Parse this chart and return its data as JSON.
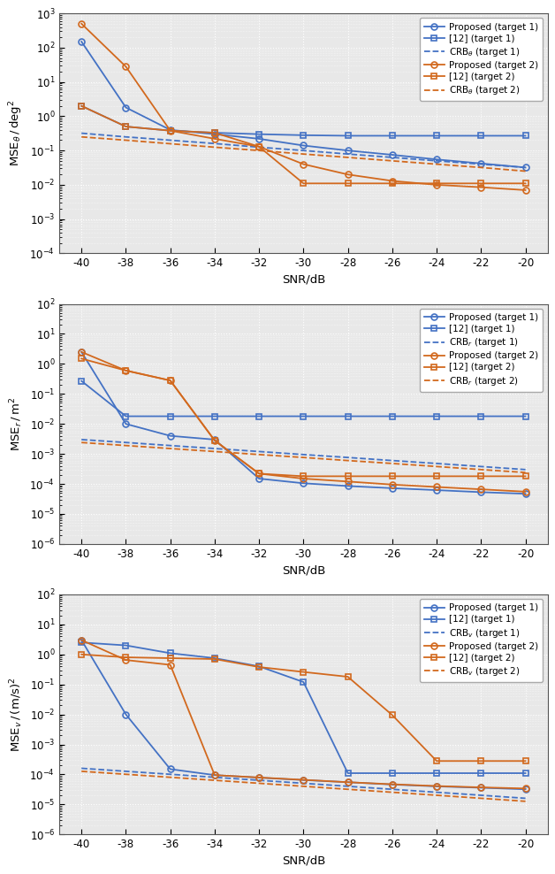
{
  "snr": [
    -40,
    -38,
    -36,
    -34,
    -32,
    -30,
    -28,
    -26,
    -24,
    -22,
    -20
  ],
  "blue_color": "#4472c4",
  "orange_color": "#d2691e",
  "plot1": {
    "ylim_log": [
      -4,
      3
    ],
    "ylabel": "MSE$_{\\theta}$ / deg$^2$",
    "crb_subscript": "\\theta",
    "proposed_t1": [
      150.0,
      1.8,
      0.4,
      0.3,
      0.22,
      0.14,
      0.1,
      0.075,
      0.055,
      0.042,
      0.032
    ],
    "ref12_t1": [
      2.0,
      0.5,
      0.38,
      0.33,
      0.3,
      0.28,
      0.27,
      0.27,
      0.27,
      0.27,
      0.27
    ],
    "crb_t1": [
      0.32,
      0.25,
      0.2,
      0.16,
      0.125,
      0.1,
      0.079,
      0.063,
      0.05,
      0.04,
      0.032
    ],
    "proposed_t2": [
      500.0,
      28.0,
      0.38,
      0.22,
      0.13,
      0.04,
      0.02,
      0.013,
      0.01,
      0.0085,
      0.007
    ],
    "ref12_t2": [
      2.0,
      0.5,
      0.38,
      0.33,
      0.13,
      0.011,
      0.011,
      0.011,
      0.011,
      0.011,
      0.011
    ],
    "crb_t2": [
      0.25,
      0.2,
      0.158,
      0.125,
      0.1,
      0.079,
      0.063,
      0.05,
      0.04,
      0.032,
      0.025
    ]
  },
  "plot2": {
    "ylim_log": [
      -6,
      2
    ],
    "ylabel": "MSE$_{r}$ / m$^2$",
    "crb_subscript": "r",
    "proposed_t1": [
      2.5,
      0.01,
      0.004,
      0.003,
      0.00015,
      0.000105,
      8.5e-05,
      7.2e-05,
      6.2e-05,
      5.3e-05,
      4.7e-05
    ],
    "ref12_t1": [
      0.27,
      0.018,
      0.018,
      0.018,
      0.018,
      0.018,
      0.018,
      0.018,
      0.018,
      0.018,
      0.018
    ],
    "crb_t1": [
      0.003,
      0.0024,
      0.0019,
      0.00151,
      0.0012,
      0.00095,
      0.00076,
      0.0006,
      0.00048,
      0.00038,
      0.0003
    ],
    "proposed_t2": [
      2.5,
      0.6,
      0.28,
      0.0028,
      0.00022,
      0.00015,
      0.00012,
      9.5e-05,
      7.9e-05,
      6.6e-05,
      5.5e-05
    ],
    "ref12_t2": [
      1.5,
      0.6,
      0.28,
      0.0028,
      0.00022,
      0.00018,
      0.00018,
      0.00018,
      0.00018,
      0.00018,
      0.00018
    ],
    "crb_t2": [
      0.0024,
      0.0019,
      0.00151,
      0.0012,
      0.00095,
      0.00076,
      0.0006,
      0.00048,
      0.00038,
      0.0003,
      0.00024
    ]
  },
  "plot3": {
    "ylim_log": [
      -6,
      2
    ],
    "ylabel": "MSE$_{v}$ / (m/s)$^2$",
    "crb_subscript": "v",
    "proposed_t1": [
      3.0,
      0.01,
      0.00015,
      9.5e-05,
      7.8e-05,
      6.5e-05,
      5.5e-05,
      4.6e-05,
      4e-05,
      3.6e-05,
      3.2e-05
    ],
    "ref12_t1": [
      2.5,
      2.0,
      1.1,
      0.75,
      0.4,
      0.12,
      0.00011,
      0.00011,
      0.00011,
      0.00011,
      0.00011
    ],
    "crb_t1": [
      0.00016,
      0.000127,
      0.000101,
      8.02e-05,
      6.37e-05,
      5.06e-05,
      4.02e-05,
      3.19e-05,
      2.54e-05,
      2.02e-05,
      1.6e-05
    ],
    "proposed_t2": [
      3.0,
      0.65,
      0.45,
      9.5e-05,
      7.9e-05,
      6.6e-05,
      5.5e-05,
      4.7e-05,
      4.1e-05,
      3.7e-05,
      3.4e-05
    ],
    "ref12_t2": [
      1.0,
      0.8,
      0.75,
      0.7,
      0.38,
      0.26,
      0.18,
      0.0095,
      0.00028,
      0.00028,
      0.00028
    ],
    "crb_t2": [
      0.000127,
      0.000101,
      8.02e-05,
      6.37e-05,
      5.06e-05,
      4.02e-05,
      3.19e-05,
      2.54e-05,
      2.02e-05,
      1.6e-05,
      1.27e-05
    ]
  }
}
